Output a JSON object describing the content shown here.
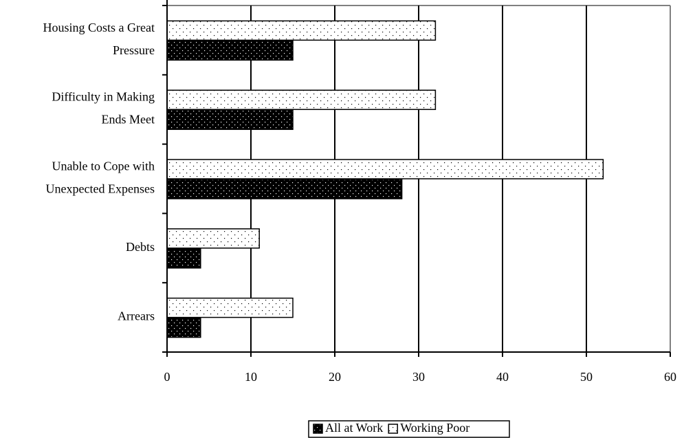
{
  "chart_data": {
    "type": "hbar",
    "categories": [
      [
        "Housing Costs a Great",
        "Pressure"
      ],
      [
        "Difficulty in Making",
        "Ends Meet"
      ],
      [
        "Unable to Cope with",
        "Unexpected Expenses"
      ],
      [
        "Debts"
      ],
      [
        "Arrears"
      ]
    ],
    "series": [
      {
        "name": "All at Work",
        "color": "#000000",
        "values": [
          15,
          15,
          28,
          4,
          4
        ]
      },
      {
        "name": "Working Poor",
        "color": "#ffffff",
        "values": [
          32,
          32,
          52,
          11,
          15
        ]
      }
    ],
    "xlim": [
      0,
      60
    ],
    "xticks": [
      0,
      10,
      20,
      30,
      40,
      50,
      60
    ],
    "grid": true,
    "legend": "bottom"
  }
}
